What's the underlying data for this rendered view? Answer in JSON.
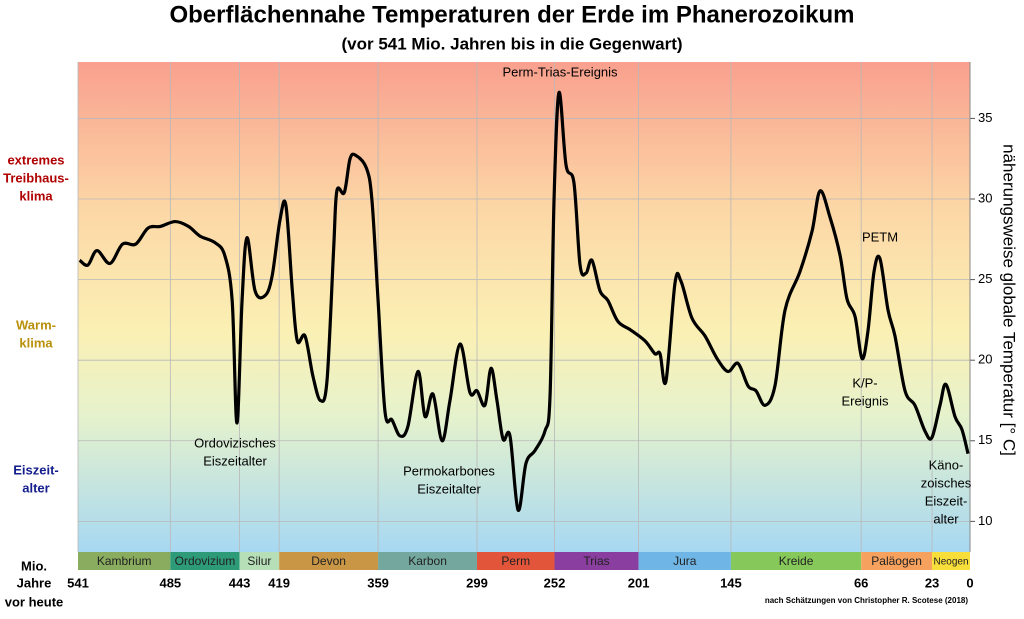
{
  "chart_data": {
    "type": "line",
    "title": "Oberflächennahe Temperaturen der Erde im Phanerozoikum",
    "subtitle": "(vor 541 Mio. Jahren bis in die Gegenwart)",
    "y_axis_label": "näherungsweise globale Temperatur [° C]",
    "x_axis_label": [
      "Mio.",
      "Jahre",
      "vor heute"
    ],
    "credit": "nach Schätzungen von Christopher R. Scotese (2018)",
    "climate_labels": [
      {
        "lines": [
          "extremes",
          "Treibhaus-",
          "klima"
        ],
        "color": "#b00000"
      },
      {
        "lines": [
          "Warm-",
          "klima"
        ],
        "color": "#b8900a"
      },
      {
        "lines": [
          "Eiszeit-",
          "alter"
        ],
        "color": "#141e8c"
      }
    ],
    "annotations": [
      {
        "lines": [
          "Perm-Trias-Ereignis"
        ]
      },
      {
        "lines": [
          "Ordovizisches",
          "Eiszeitalter"
        ]
      },
      {
        "lines": [
          "Permokarbones",
          "Eiszeitalter"
        ]
      },
      {
        "lines": [
          "PETM"
        ]
      },
      {
        "lines": [
          "K/P-",
          "Ereignis"
        ]
      },
      {
        "lines": [
          "Käno-",
          "zoisches",
          "Eiszeit-",
          "alter"
        ]
      }
    ],
    "periods": [
      {
        "name": "Kambrium",
        "color": "#8aac5e"
      },
      {
        "name": "Ordovizium",
        "color": "#2d9a78"
      },
      {
        "name": "Silur",
        "color": "#b6dfb8"
      },
      {
        "name": "Devon",
        "color": "#c99645"
      },
      {
        "name": "Karbon",
        "color": "#74a89e"
      },
      {
        "name": "Perm",
        "color": "#e2553a"
      },
      {
        "name": "Trias",
        "color": "#8a3fa0"
      },
      {
        "name": "Jura",
        "color": "#6fb6e6"
      },
      {
        "name": "Kreide",
        "color": "#86c95a"
      },
      {
        "name": "Paläogen",
        "color": "#f6a25e"
      },
      {
        "name": "Neogen",
        "color": "#f8de3a"
      }
    ],
    "x": [
      540,
      535,
      529.5,
      521.6,
      514,
      506,
      498.5,
      491,
      482,
      474,
      467,
      458,
      452,
      447.5,
      444.6,
      441.5,
      438.5,
      433.6,
      427.6,
      423.3,
      418.5,
      414.9,
      411,
      408,
      403.3,
      398.5,
      394,
      390,
      386,
      384,
      379.5,
      376,
      372.4,
      366,
      362.7,
      359,
      354.8,
      350.6,
      345.7,
      340.9,
      334.8,
      330.5,
      325.7,
      320.2,
      315.4,
      309.3,
      303.3,
      299,
      294.2,
      290.5,
      286.9,
      283.2,
      279,
      274.1,
      269.3,
      263.8,
      257.8,
      254.7,
      252.3,
      249.3,
      245,
      240.2,
      236.5,
      232.9,
      229.3,
      224.4,
      219.6,
      213.5,
      206.2,
      197.1,
      191.1,
      188,
      184.4,
      178.9,
      175.3,
      168.6,
      160.7,
      153.4,
      146.8,
      140.7,
      134.6,
      129.8,
      124.3,
      118.3,
      112.2,
      103.1,
      95.8,
      91,
      85,
      78.8,
      74.6,
      69.7,
      65.5,
      61.9,
      58.2,
      54.6,
      49.7,
      45.5,
      39.4,
      33.4,
      27.3,
      23.1,
      18.2,
      14.6,
      9.1,
      4.9,
      1.2
    ],
    "series": [
      {
        "name": "Temperatur",
        "color": "#000000",
        "values": [
          26.2,
          25.9,
          26.8,
          26.0,
          27.2,
          27.2,
          28.2,
          28.3,
          28.6,
          28.3,
          27.7,
          27.3,
          26.5,
          23.7,
          16.1,
          23.7,
          27.6,
          24.3,
          24.0,
          25.2,
          28.7,
          29.6,
          24.3,
          21.2,
          21.5,
          19.0,
          17.5,
          18.7,
          26.8,
          30.5,
          30.4,
          32.5,
          32.7,
          31.9,
          29.9,
          23.7,
          16.8,
          16.3,
          15.3,
          15.9,
          19.3,
          16.5,
          17.9,
          15.0,
          17.5,
          21.0,
          18.0,
          18.1,
          17.2,
          19.5,
          17.5,
          15.1,
          15.3,
          10.7,
          13.6,
          14.4,
          15.6,
          17.8,
          29.9,
          36.6,
          32.1,
          31.0,
          25.9,
          25.4,
          26.2,
          24.3,
          23.7,
          22.4,
          21.9,
          21.2,
          20.4,
          20.4,
          18.7,
          24.8,
          24.9,
          22.6,
          21.5,
          20.1,
          19.3,
          19.8,
          18.4,
          18.1,
          17.2,
          18.4,
          23.1,
          25.5,
          28.0,
          30.5,
          28.9,
          26.5,
          23.8,
          22.7,
          20.1,
          21.8,
          25.5,
          26.3,
          23.1,
          21.5,
          18.1,
          17.2,
          15.6,
          15.2,
          17.2,
          18.5,
          16.5,
          15.7,
          14.2
        ]
      }
    ],
    "xlim": [
      541,
      0
    ],
    "xticks": [
      541,
      485,
      443,
      419,
      359,
      299,
      252,
      201,
      145,
      66,
      23,
      0
    ],
    "ylim": [
      8.1,
      38.5
    ],
    "yticks": [
      10,
      15,
      20,
      25,
      30,
      35
    ],
    "grid": true
  }
}
